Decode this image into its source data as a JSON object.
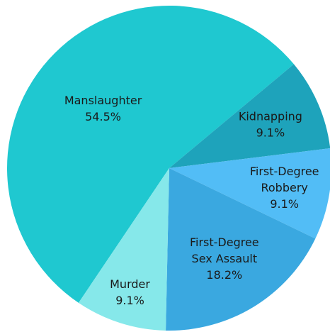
{
  "chart_data": {
    "type": "pie",
    "categories": [
      "Manslaughter",
      "Kidnapping",
      "First-Degree Robbery",
      "First-Degree Sex Assault",
      "Murder"
    ],
    "values": [
      54.5,
      9.1,
      9.1,
      18.2,
      9.1
    ],
    "value_labels": [
      "54.5%",
      "9.1%",
      "9.1%",
      "18.2%",
      "9.1%"
    ],
    "colors": [
      "#1fc8d0",
      "#1ea3bb",
      "#52bdf6",
      "#3aa8e0",
      "#86e8ea"
    ]
  }
}
